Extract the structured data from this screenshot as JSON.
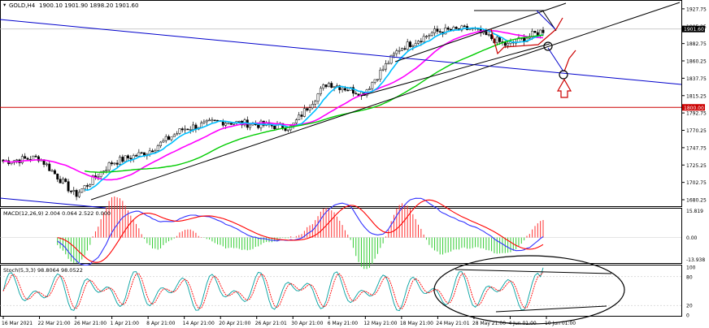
{
  "header": {
    "symbol_label": "GOLD,H4",
    "ohlc_label": "1900.10 1901.90 1898.20 1901.60"
  },
  "price_axis": {
    "ticks": [
      "1927.75",
      "1905.25",
      "1882.75",
      "1860.25",
      "1837.75",
      "1815.25",
      "1792.75",
      "1770.25",
      "1747.75",
      "1725.25",
      "1702.75",
      "1680.25"
    ],
    "current_price": "1901.60",
    "level_label": "1800.00"
  },
  "time_axis": {
    "labels": [
      "16 Mar 2021",
      "22 Mar 21:00",
      "26 Mar 21:00",
      "1 Apr 21:00",
      "8 Apr 21:00",
      "14 Apr 21:00",
      "20 Apr 21:00",
      "26 Apr 21:01",
      "30 Apr 21:00",
      "6 May 21:00",
      "12 May 21:00",
      "18 May 21:00",
      "24 May 21:01",
      "28 May 21:00",
      "4 Jun 01:00",
      "10 Jun 01:00"
    ]
  },
  "macd_panel": {
    "label": "MACD(12,26,9) 2.004 0.064 2.522 0.000",
    "ticks": [
      "15.819",
      "0.00",
      "-13.938"
    ]
  },
  "stoch_panel": {
    "label": "Stoch(5,3,3) 98.8064 98.0522",
    "ticks": [
      "100",
      "80",
      "20",
      "0"
    ]
  },
  "colors": {
    "bull_candle": "#ffffff",
    "bear_candle": "#000000",
    "ma_fast": "#00bfff",
    "ma_slow": "#00cc00",
    "ma_mid": "#ff00ff",
    "channel": "#0000cc",
    "level": "#cc0000",
    "macd_pos": "#ff3333",
    "macd_neg": "#33cc33"
  },
  "chart_data": [
    {
      "type": "candlestick",
      "title": "GOLD,H4",
      "ylim": [
        1675,
        1935
      ],
      "horizontal_level": 1800.0,
      "last_price": 1901.6,
      "close_path": {
        "x": [
          "16 Mar 2021",
          "22 Mar 21:00",
          "26 Mar 21:00",
          "1 Apr 21:00",
          "8 Apr 21:00",
          "14 Apr 21:00",
          "20 Apr 21:00",
          "26 Apr 21:01",
          "30 Apr 21:00",
          "6 May 21:00",
          "12 May 21:00",
          "18 May 21:00",
          "24 May 21:01",
          "28 May 21:00",
          "4 Jun 01:00",
          "10 Jun 01:00"
        ],
        "y": [
          1730,
          1735,
          1686,
          1728,
          1742,
          1772,
          1782,
          1778,
          1774,
          1832,
          1818,
          1876,
          1898,
          1902,
          1880,
          1900
        ]
      }
    },
    {
      "type": "line",
      "title": "MACD(12,26,9)",
      "ylim": [
        -13.938,
        15.819
      ]
    },
    {
      "type": "line",
      "title": "Stoch(5,3,3)",
      "ylim": [
        0,
        100
      ]
    }
  ]
}
